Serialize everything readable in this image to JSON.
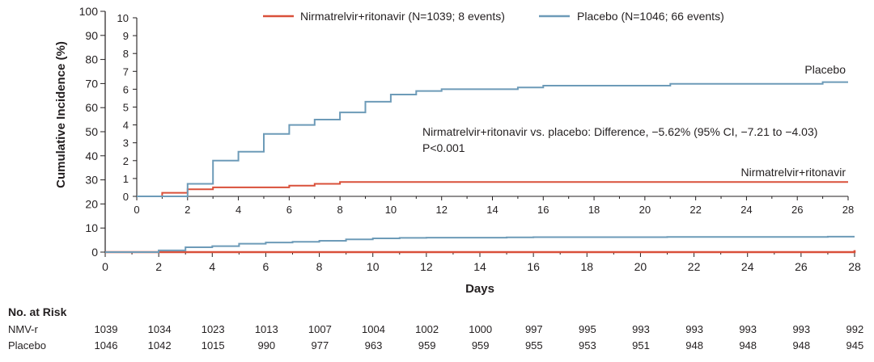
{
  "chart_data": {
    "type": "line",
    "style": "step (Kaplan-Meier cumulative incidence)",
    "ylabel": "Cumulative Incidence (%)",
    "xlabel": "Days",
    "colors": {
      "Nirmatrelvir+ritonavir": "#d9503a",
      "Placebo": "#6d9bb8"
    },
    "main": {
      "xlim": [
        0,
        28
      ],
      "ylim": [
        0,
        100
      ],
      "xticks": [
        "0",
        "2",
        "4",
        "6",
        "8",
        "10",
        "12",
        "14",
        "16",
        "18",
        "20",
        "22",
        "24",
        "26",
        "28"
      ],
      "yticks": [
        "0",
        "10",
        "20",
        "30",
        "40",
        "50",
        "60",
        "70",
        "80",
        "90",
        "100"
      ],
      "series": [
        {
          "name": "Nirmatrelvir+ritonavir",
          "x": [
            0,
            28
          ],
          "y": [
            0.0,
            0.8
          ]
        },
        {
          "name": "Placebo",
          "x": [
            0,
            2,
            3,
            4,
            5,
            6,
            7,
            8,
            9,
            10,
            11,
            12,
            15,
            16,
            21,
            27,
            28
          ],
          "y": [
            0,
            0.7,
            2.0,
            2.5,
            3.5,
            4.0,
            4.3,
            4.7,
            5.3,
            5.7,
            5.9,
            6.0,
            6.1,
            6.2,
            6.3,
            6.4,
            6.4
          ]
        }
      ]
    },
    "inset": {
      "xlim": [
        0,
        28
      ],
      "ylim": [
        0,
        10
      ],
      "xticks": [
        "0",
        "2",
        "4",
        "6",
        "8",
        "10",
        "12",
        "14",
        "16",
        "18",
        "20",
        "22",
        "24",
        "26",
        "28"
      ],
      "yticks": [
        "0",
        "1",
        "2",
        "3",
        "4",
        "5",
        "6",
        "7",
        "8",
        "9",
        "10"
      ],
      "series": [
        {
          "name": "Nirmatrelvir+ritonavir",
          "x": [
            0,
            1,
            2,
            3,
            6,
            7,
            8,
            13,
            28
          ],
          "y": [
            0,
            0.2,
            0.4,
            0.5,
            0.6,
            0.7,
            0.8,
            0.8,
            0.8
          ]
        },
        {
          "name": "Placebo",
          "x": [
            0,
            2,
            3,
            4,
            5,
            6,
            7,
            8,
            9,
            10,
            11,
            12,
            15,
            16,
            21,
            27,
            28
          ],
          "y": [
            0,
            0.7,
            2.0,
            2.5,
            3.5,
            4.0,
            4.3,
            4.7,
            5.3,
            5.7,
            5.9,
            6.0,
            6.1,
            6.2,
            6.3,
            6.4,
            6.4
          ]
        }
      ],
      "label_placebo": "Placebo",
      "label_nmv": "Nirmatrelvir+ritonavir",
      "annotation_line1": "Nirmatrelvir+ritonavir vs. placebo: Difference, −5.62% (95% CI, −7.21 to −4.03)",
      "annotation_line2": "P<0.001"
    },
    "legend": {
      "placement": "top",
      "entries": [
        "Nirmatrelvir+ritonavir (N=1039; 8 events)",
        "Placebo (N=1046; 66 events)"
      ]
    }
  },
  "risk_table": {
    "title": "No. at Risk",
    "rows": [
      {
        "label": "NMV-r",
        "values": [
          "1039",
          "1034",
          "1023",
          "1013",
          "1007",
          "1004",
          "1002",
          "1000",
          "997",
          "995",
          "993",
          "993",
          "993",
          "993",
          "992"
        ]
      },
      {
        "label": "Placebo",
        "values": [
          "1046",
          "1042",
          "1015",
          "990",
          "977",
          "963",
          "959",
          "959",
          "955",
          "953",
          "951",
          "948",
          "948",
          "948",
          "945"
        ]
      }
    ]
  }
}
